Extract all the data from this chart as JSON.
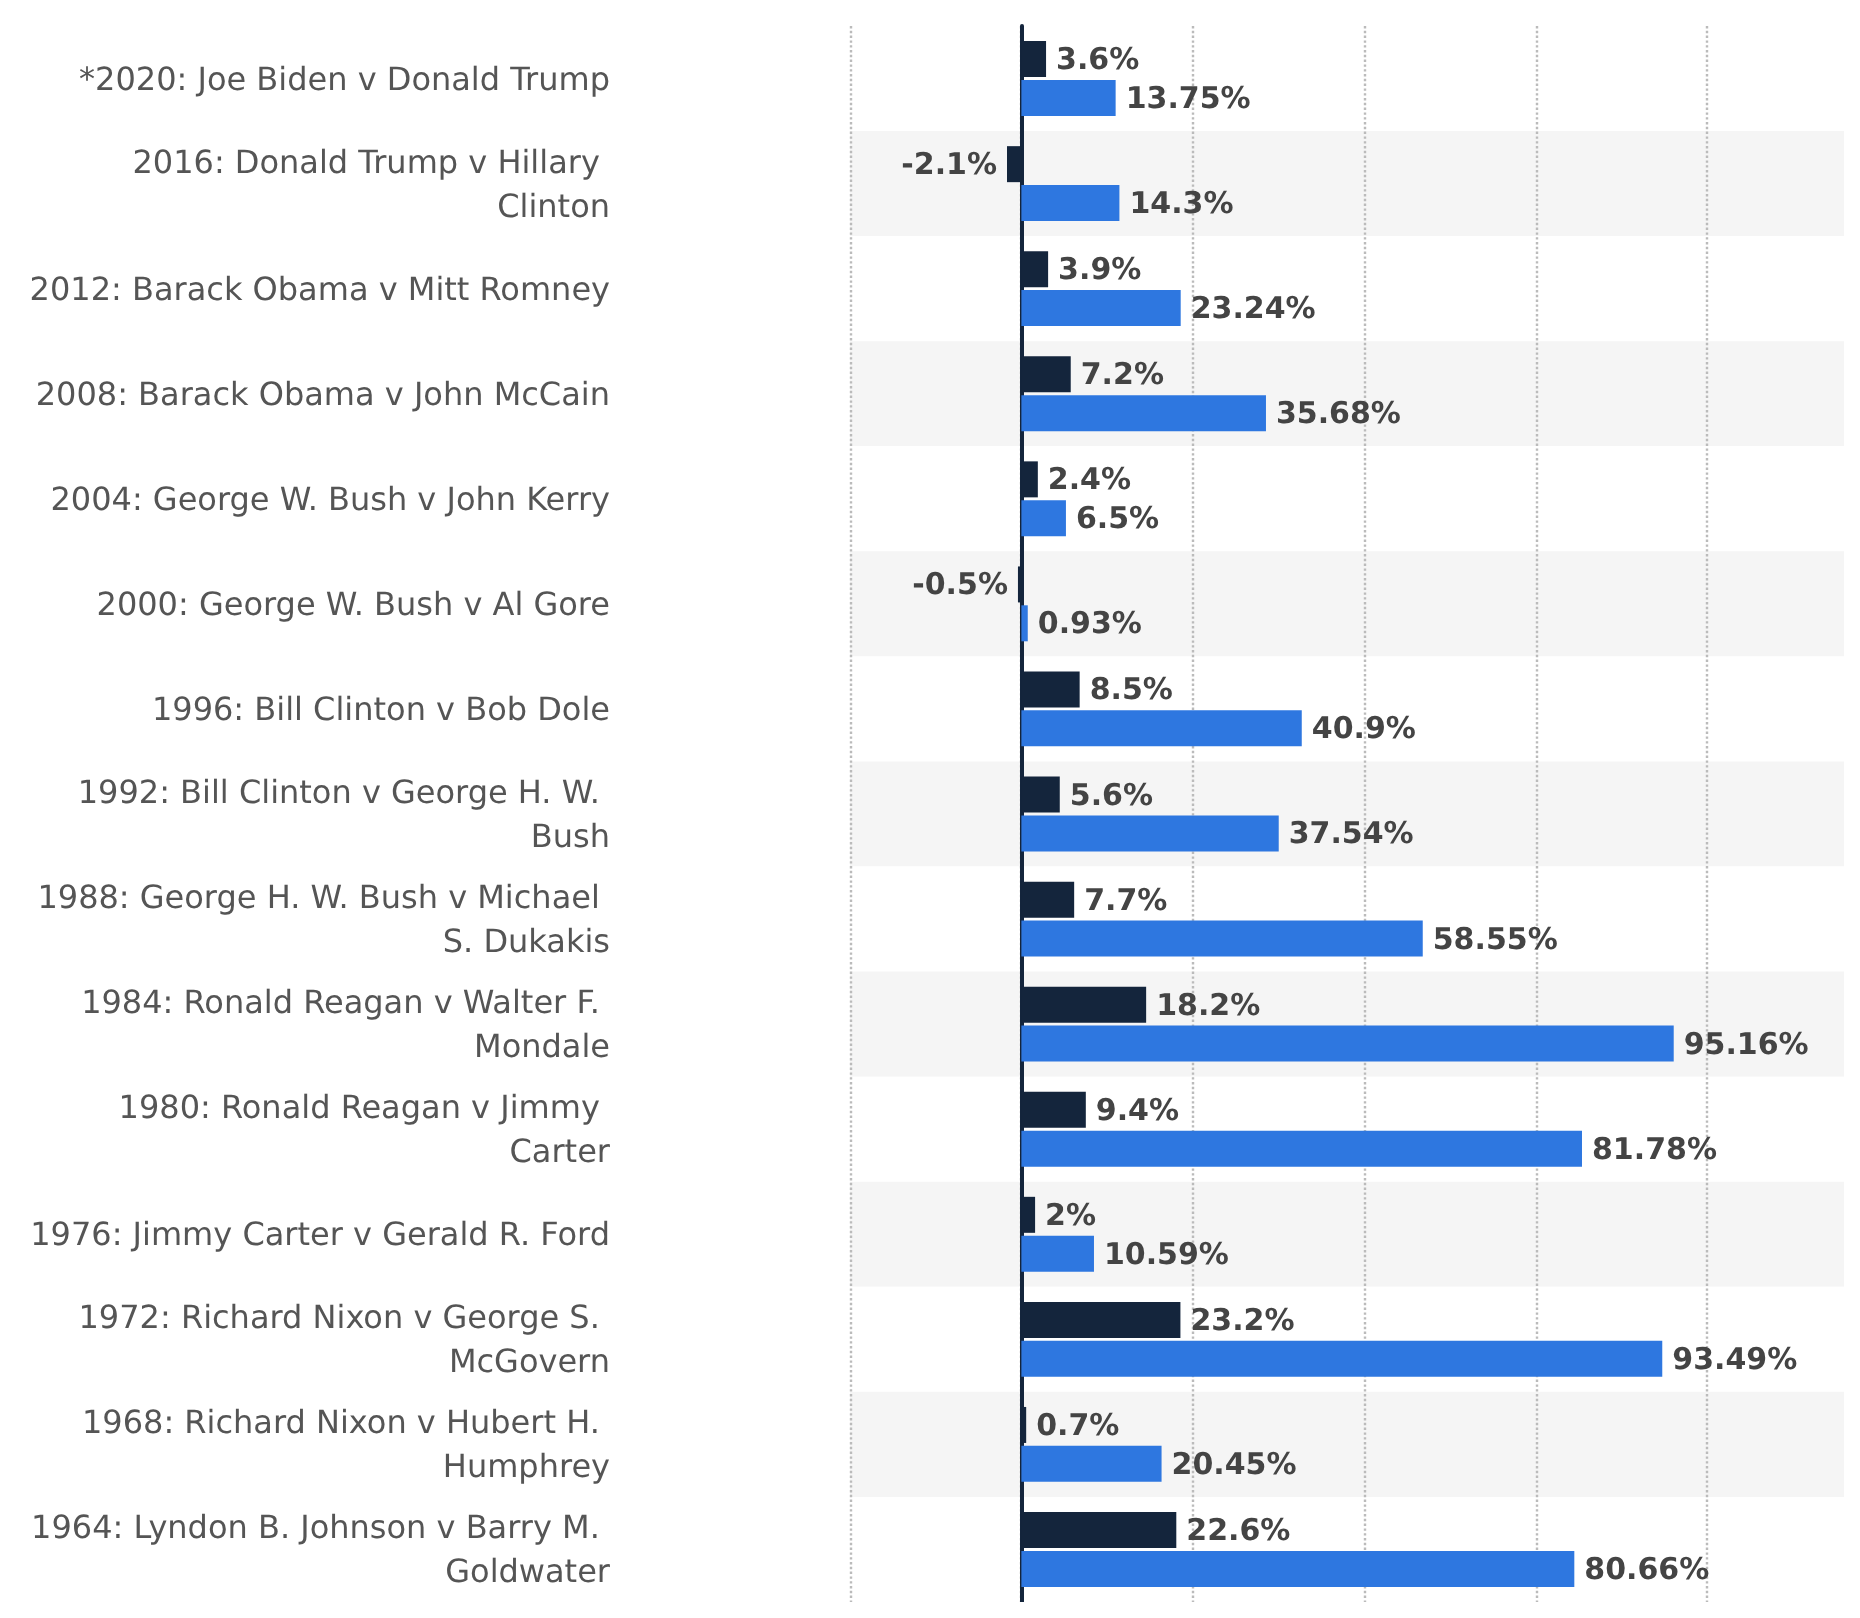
{
  "chart_data": {
    "type": "bar",
    "orientation": "horizontal",
    "categories": [
      "*2020: Joe Biden v Donald Trump",
      "2016: Donald Trump v Hillary Clinton",
      "2012: Barack Obama v Mitt Romney",
      "2008: Barack Obama v John McCain",
      "2004: George W. Bush v John Kerry",
      "2000: George W. Bush v Al Gore",
      "1996: Bill Clinton v Bob Dole",
      "1992: Bill Clinton v George H. W. Bush",
      "1988: George H. W. Bush v Michael S. Dukakis",
      "1984: Ronald Reagan v Walter F. Mondale",
      "1980: Ronald Reagan v Jimmy Carter",
      "1976: Jimmy Carter v Gerald R. Ford",
      "1972: Richard Nixon v George S. McGovern",
      "1968: Richard Nixon v Hubert H. Humphrey",
      "1964: Lyndon B. Johnson v Barry M. Goldwater"
    ],
    "series": [
      {
        "color": "#14253c",
        "values": [
          3.6,
          -2.1,
          3.9,
          7.2,
          2.4,
          -0.5,
          8.5,
          5.6,
          7.7,
          18.2,
          9.4,
          2,
          23.2,
          0.7,
          22.6
        ],
        "value_labels": [
          "3.6%",
          "-2.1%",
          "3.9%",
          "7.2%",
          "2.4%",
          "-0.5%",
          "8.5%",
          "5.6%",
          "7.7%",
          "18.2%",
          "9.4%",
          "2%",
          "23.2%",
          "0.7%",
          "22.6%"
        ]
      },
      {
        "color": "#2e77e0",
        "values": [
          13.75,
          14.3,
          23.24,
          35.68,
          6.5,
          0.93,
          40.9,
          37.54,
          58.55,
          95.16,
          81.78,
          10.59,
          93.49,
          20.45,
          80.66
        ],
        "value_labels": [
          "13.75%",
          "14.3%",
          "23.24%",
          "35.68%",
          "6.5%",
          "0.93%",
          "40.9%",
          "37.54%",
          "58.55%",
          "95.16%",
          "81.78%",
          "10.59%",
          "93.49%",
          "20.45%",
          "80.66%"
        ]
      }
    ],
    "xlim": [
      -25,
      120
    ],
    "xticks": [
      {
        "value": -25,
        "label": null
      },
      {
        "value": 0,
        "label": null
      },
      {
        "value": 25,
        "label": null
      },
      {
        "value": 50,
        "label": null
      },
      {
        "value": 75,
        "label": null
      },
      {
        "value": 100,
        "label": null
      }
    ],
    "tick_labels": "y",
    "grid": "x"
  }
}
